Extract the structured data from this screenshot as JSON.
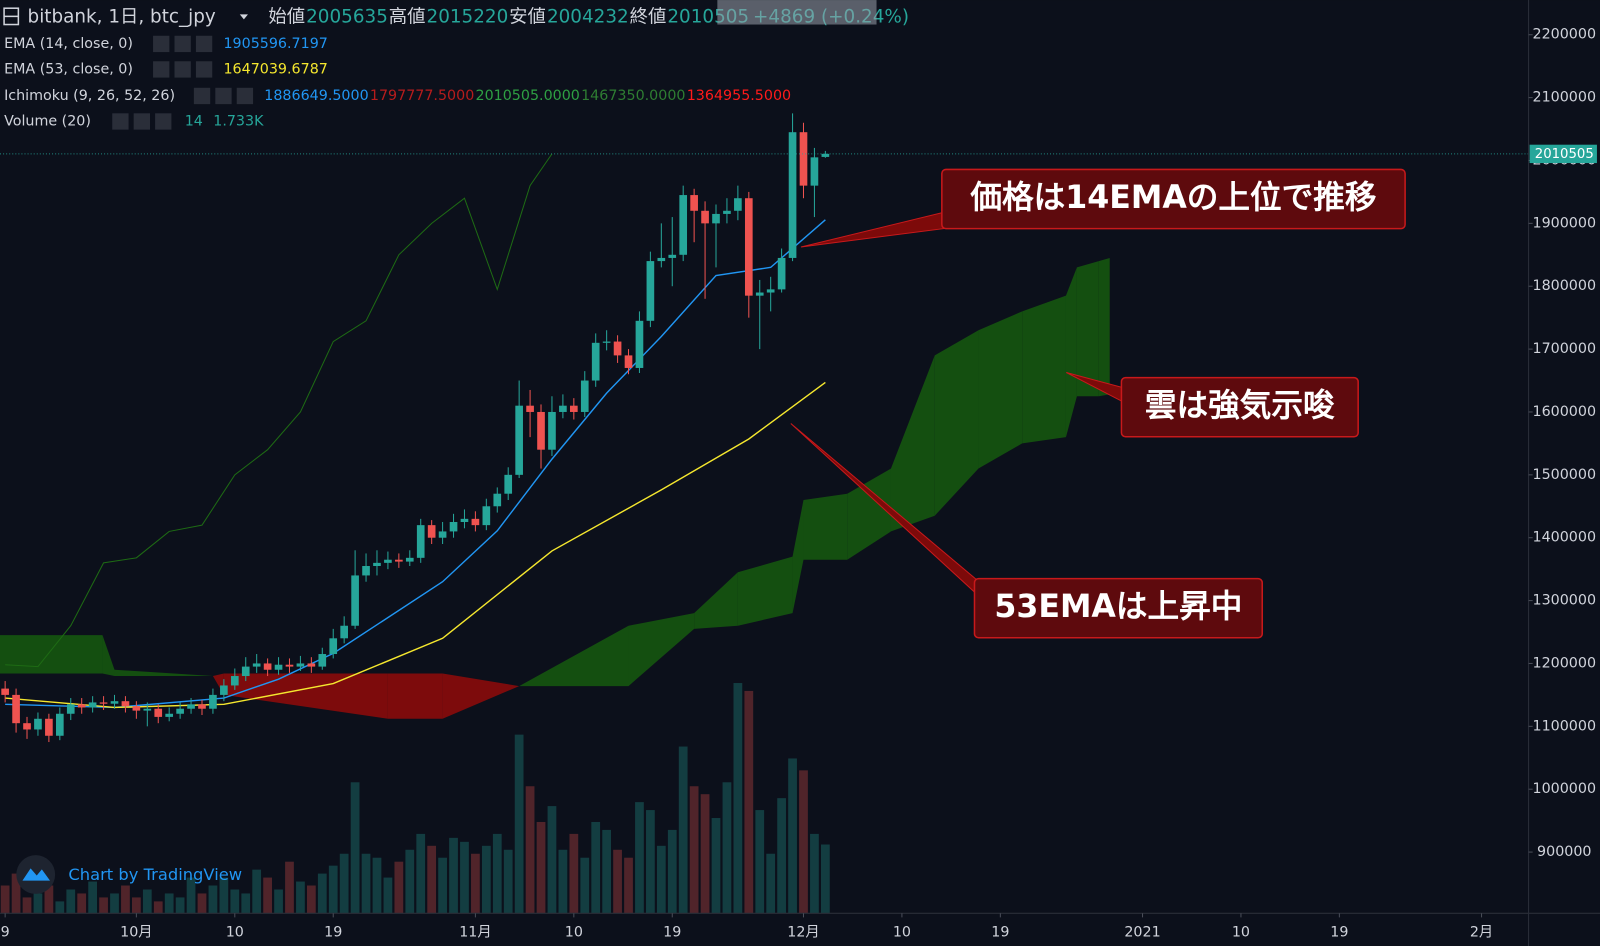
{
  "header": {
    "title": "bitbank, 1日, btc_jpy",
    "open_label": "始値",
    "high_label": "高値",
    "low_label": "安値",
    "close_label": "終値",
    "change": "+4869 (+0.24%)"
  },
  "ichimoku_legend": {
    "name": "Ichimoku (9, 26, 52, 26)",
    "labels": [
      {
        "text": "1886649.5000",
        "color": "#2196f3"
      },
      {
        "text": "1797777.5000",
        "color": "#b71c1c"
      },
      {
        "text": "2010505.0000",
        "color": "#2ea043"
      },
      {
        "text": "1467350.0000",
        "color": "#2e7d32"
      },
      {
        "text": "1364955.5000",
        "color": "#ff1a1a"
      }
    ]
  },
  "volume_legend": {
    "name": "Volume (20)",
    "labels": [
      "14",
      "1.733K"
    ]
  },
  "annotations": [
    "価格は14EMAの上位で推移",
    "雲は強気示唆",
    "53EMAは上昇中"
  ],
  "watermark": "Chart by TradingView",
  "chart_data": {
    "type": "candlestick",
    "up_color": "#26a69a",
    "down_color": "#ef5350",
    "xlim": [
      -0.47,
      139.3
    ],
    "xticks": [
      {
        "value": 0,
        "label": "9"
      },
      {
        "value": 12,
        "label": "10月"
      },
      {
        "value": 21,
        "label": "10"
      },
      {
        "value": 30,
        "label": "19"
      },
      {
        "value": 43,
        "label": "11月"
      },
      {
        "value": 52,
        "label": "10"
      },
      {
        "value": 61,
        "label": "19"
      },
      {
        "value": 73,
        "label": "12月"
      },
      {
        "value": 82,
        "label": "10"
      },
      {
        "value": 91,
        "label": "19"
      },
      {
        "value": 104,
        "label": "2021"
      },
      {
        "value": 113,
        "label": "10"
      },
      {
        "value": 122,
        "label": "19"
      },
      {
        "value": 135,
        "label": "2月"
      }
    ],
    "ylim": [
      802600,
      2255200
    ],
    "yticks": [
      900000,
      1000000,
      1100000,
      1200000,
      1300000,
      1400000,
      1500000,
      1600000,
      1700000,
      1800000,
      1900000,
      2000000,
      2100000,
      2200000
    ],
    "open": [
      1160000,
      1150000,
      1105000,
      1095000,
      1112000,
      1085000,
      1120000,
      1135000,
      1130000,
      1138000,
      1136000,
      1140000,
      1132000,
      1125000,
      1128000,
      1115000,
      1120000,
      1128000,
      1135000,
      1128000,
      1150000,
      1165000,
      1180000,
      1195000,
      1200000,
      1190000,
      1198000,
      1195000,
      1200000,
      1195000,
      1215000,
      1240000,
      1260000,
      1340000,
      1355000,
      1360000,
      1365000,
      1362000,
      1368000,
      1420000,
      1400000,
      1410000,
      1425000,
      1430000,
      1420000,
      1450000,
      1470000,
      1500000,
      1610000,
      1600000,
      1540000,
      1600000,
      1610000,
      1600000,
      1650000,
      1710000,
      1712000,
      1690000,
      1670000,
      1745000,
      1840000,
      1845000,
      1850000,
      1945000,
      1920000,
      1900000,
      1915000,
      1920000,
      1940000,
      1785000,
      1790000,
      1795000,
      1845000,
      2045000,
      1960000,
      2005635
    ],
    "high": [
      1172000,
      1160000,
      1115000,
      1122000,
      1120000,
      1130000,
      1145000,
      1145000,
      1148000,
      1148000,
      1150000,
      1148000,
      1140000,
      1138000,
      1135000,
      1130000,
      1138000,
      1145000,
      1142000,
      1160000,
      1175000,
      1192000,
      1210000,
      1215000,
      1208000,
      1210000,
      1208000,
      1212000,
      1210000,
      1225000,
      1255000,
      1275000,
      1380000,
      1375000,
      1380000,
      1378000,
      1375000,
      1380000,
      1430000,
      1428000,
      1425000,
      1438000,
      1445000,
      1442000,
      1462000,
      1480000,
      1512000,
      1650000,
      1635000,
      1612000,
      1625000,
      1628000,
      1622000,
      1665000,
      1725000,
      1730000,
      1722000,
      1700000,
      1760000,
      1855000,
      1900000,
      1910000,
      1960000,
      1955000,
      1935000,
      1930000,
      1940000,
      1960000,
      1950000,
      1810000,
      1815000,
      1860000,
      2075000,
      2060000,
      2020000,
      2015220
    ],
    "low": [
      1138000,
      1090000,
      1080000,
      1085000,
      1075000,
      1078000,
      1110000,
      1120000,
      1122000,
      1126000,
      1128000,
      1122000,
      1112000,
      1100000,
      1105000,
      1108000,
      1112000,
      1120000,
      1118000,
      1120000,
      1140000,
      1158000,
      1172000,
      1185000,
      1180000,
      1182000,
      1185000,
      1188000,
      1185000,
      1190000,
      1208000,
      1232000,
      1255000,
      1330000,
      1340000,
      1350000,
      1352000,
      1355000,
      1360000,
      1390000,
      1390000,
      1400000,
      1415000,
      1410000,
      1412000,
      1440000,
      1460000,
      1495000,
      1560000,
      1510000,
      1530000,
      1590000,
      1588000,
      1592000,
      1640000,
      1698000,
      1678000,
      1660000,
      1662000,
      1735000,
      1830000,
      1800000,
      1840000,
      1870000,
      1780000,
      1830000,
      1900000,
      1905000,
      1750000,
      1700000,
      1760000,
      1790000,
      1840000,
      1940000,
      1910000,
      2004232
    ],
    "close": [
      1150000,
      1105000,
      1095000,
      1112000,
      1085000,
      1120000,
      1135000,
      1130000,
      1138000,
      1136000,
      1140000,
      1132000,
      1125000,
      1128000,
      1115000,
      1120000,
      1128000,
      1135000,
      1128000,
      1150000,
      1165000,
      1180000,
      1195000,
      1200000,
      1190000,
      1198000,
      1195000,
      1200000,
      1195000,
      1215000,
      1240000,
      1260000,
      1340000,
      1355000,
      1360000,
      1365000,
      1362000,
      1368000,
      1420000,
      1400000,
      1410000,
      1425000,
      1430000,
      1420000,
      1450000,
      1470000,
      1500000,
      1610000,
      1600000,
      1540000,
      1600000,
      1610000,
      1600000,
      1650000,
      1710000,
      1712000,
      1690000,
      1670000,
      1745000,
      1840000,
      1845000,
      1850000,
      1945000,
      1920000,
      1900000,
      1915000,
      1920000,
      1940000,
      1785000,
      1790000,
      1795000,
      1845000,
      2045000,
      1960000,
      2005000,
      2010505
    ],
    "series": [
      {
        "name": "EMA (14, close, 0)",
        "color": "#2196f3",
        "x": [
          0,
          10,
          20,
          25,
          30,
          40,
          45,
          50,
          55,
          60,
          65,
          70,
          75
        ],
        "values": [
          1135000,
          1130000,
          1145000,
          1175000,
          1216000,
          1330000,
          1411000,
          1525000,
          1630000,
          1720000,
          1817000,
          1830000,
          1905596.7197
        ]
      },
      {
        "name": "EMA (53, close, 0)",
        "color": "#f5e72e",
        "x": [
          0,
          10,
          20,
          30,
          40,
          50,
          60,
          68,
          75
        ],
        "values": [
          1145000,
          1130000,
          1135000,
          1168000,
          1240000,
          1379000,
          1476000,
          1557000,
          1647039.6787
        ]
      }
    ],
    "lagging_span": {
      "color": "#1e6b14",
      "x": [
        0,
        3,
        6,
        9,
        12,
        15,
        18,
        21,
        24,
        27,
        30,
        33,
        36,
        39,
        42,
        45,
        48,
        50
      ],
      "values": [
        1198000,
        1195000,
        1260000,
        1360000,
        1368000,
        1410000,
        1420000,
        1500000,
        1540000,
        1600000,
        1712000,
        1745000,
        1850000,
        1900000,
        1940000,
        1795000,
        1960000,
        2010505
      ]
    },
    "cloud": {
      "up_color": "#15560f",
      "down_color": "#8a0b0b",
      "x": [
        -0.5,
        8.9,
        10,
        19,
        20,
        35,
        40,
        47,
        57,
        63,
        67,
        72,
        73,
        77,
        81,
        85,
        89,
        93,
        97,
        98,
        100,
        101
      ],
      "span_a": [
        1245000,
        1245000,
        1190000,
        1180000,
        1150000,
        1112000,
        1112000,
        1164000,
        1260000,
        1280000,
        1345000,
        1370000,
        1460000,
        1470000,
        1510000,
        1690000,
        1730000,
        1760000,
        1785000,
        1830000,
        1840000,
        1845000
      ],
      "span_b": [
        1184000,
        1184000,
        1180000,
        1180000,
        1184000,
        1184000,
        1184000,
        1164000,
        1164000,
        1255000,
        1260000,
        1280000,
        1365000,
        1365000,
        1410000,
        1435000,
        1510000,
        1550000,
        1560000,
        1625000,
        1625000,
        1628000
      ]
    },
    "volume": {
      "vlim": [
        0,
        23000
      ],
      "values": [
        700,
        1000,
        400,
        500,
        700,
        300,
        600,
        500,
        800,
        400,
        500,
        700,
        400,
        600,
        300,
        500,
        400,
        900,
        500,
        700,
        900,
        600,
        500,
        1100,
        900,
        600,
        1300,
        800,
        700,
        1000,
        1200,
        1500,
        3300,
        1500,
        1400,
        900,
        1300,
        1600,
        2000,
        1700,
        1400,
        1900,
        1800,
        1500,
        1700,
        2000,
        1600,
        4500,
        3200,
        2300,
        2700,
        1600,
        2000,
        1400,
        2300,
        2100,
        1600,
        1400,
        2800,
        2600,
        1700,
        2100,
        4200,
        3200,
        3000,
        2400,
        3300,
        5800,
        5600,
        2600,
        1500,
        2900,
        3900,
        3600,
        2000,
        1733
      ]
    }
  }
}
